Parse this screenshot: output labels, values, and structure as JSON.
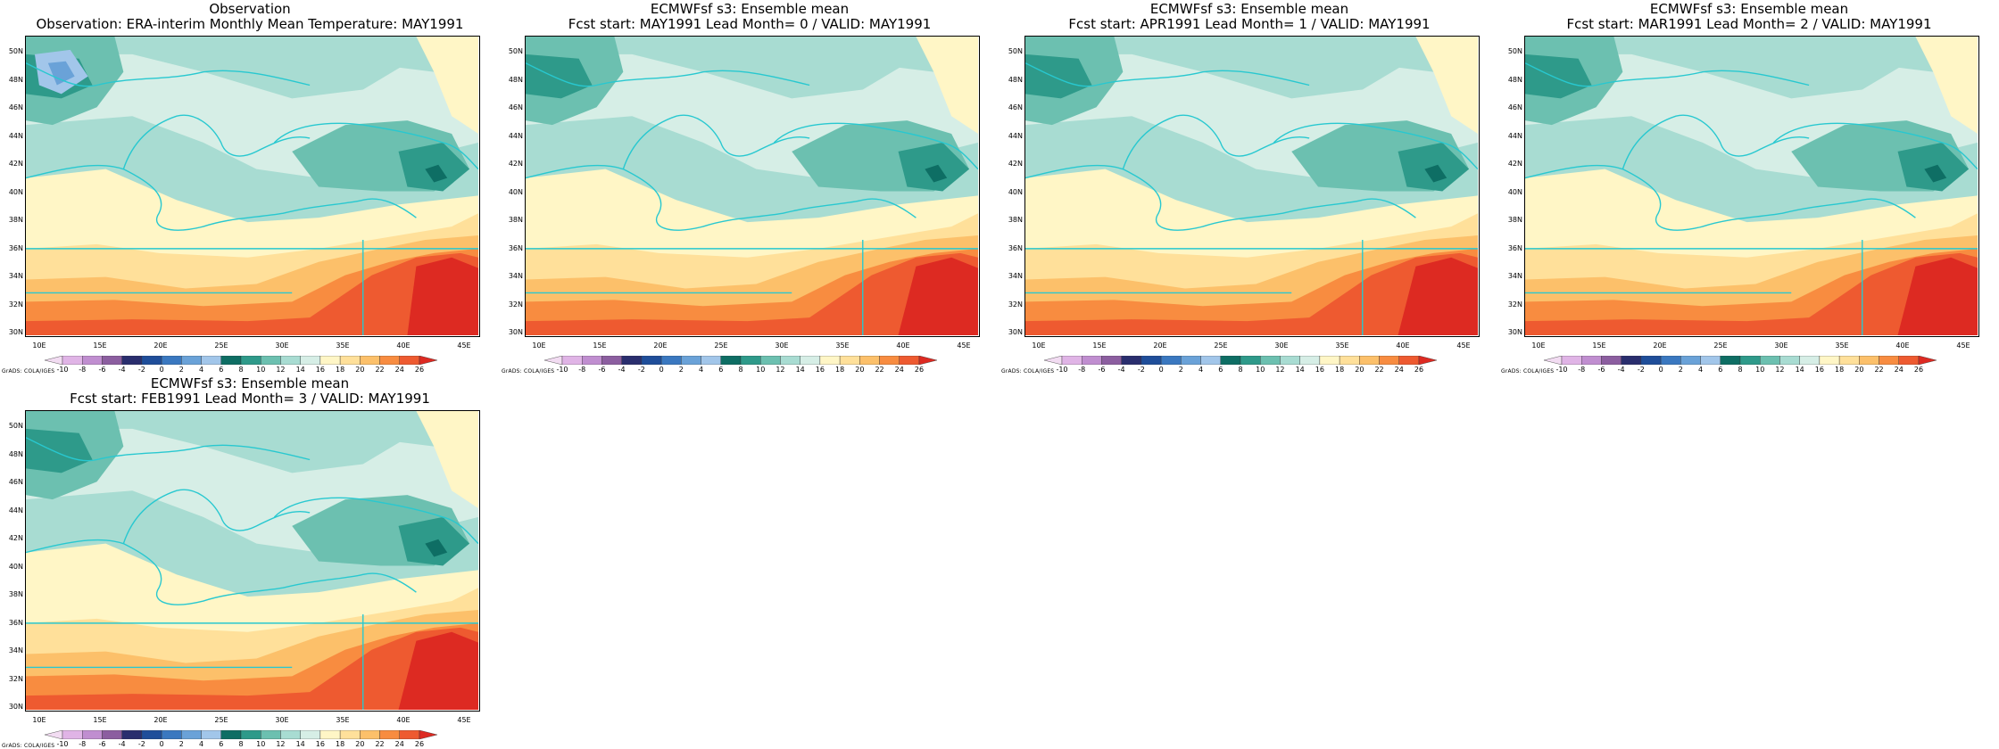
{
  "panels": [
    {
      "title1": "Observation",
      "title2": "Observation: ERA-interim Monthly Mean Temperature: MAY1991",
      "variant": 0
    },
    {
      "title1": "ECMWFsf s3: Ensemble mean",
      "title2": "Fcst start: MAY1991   Lead Month= 0 / VALID: MAY1991",
      "variant": 1
    },
    {
      "title1": "ECMWFsf s3: Ensemble mean",
      "title2": "Fcst start: APR1991   Lead Month= 1 / VALID: MAY1991",
      "variant": 2
    },
    {
      "title1": "ECMWFsf s3: Ensemble mean",
      "title2": "Fcst start: MAR1991   Lead Month= 2 / VALID: MAY1991",
      "variant": 3
    },
    {
      "title1": "ECMWFsf s3: Ensemble mean",
      "title2": "Fcst start: FEB1991   Lead Month= 3 / VALID: MAY1991",
      "variant": 4
    }
  ],
  "lat_labels": [
    "50N",
    "48N",
    "46N",
    "44N",
    "42N",
    "40N",
    "38N",
    "36N",
    "34N",
    "32N",
    "30N"
  ],
  "lon_labels": [
    "10E",
    "15E",
    "20E",
    "25E",
    "30E",
    "35E",
    "40E",
    "45E"
  ],
  "colorbar": {
    "labels": [
      "-10",
      "-8",
      "-6",
      "-4",
      "-2",
      "0",
      "2",
      "4",
      "6",
      "8",
      "10",
      "12",
      "14",
      "16",
      "18",
      "20",
      "22",
      "24",
      "26"
    ],
    "colors": [
      "#f2dcf2",
      "#e0b4e6",
      "#c08ed0",
      "#8c5ea0",
      "#2a2e6e",
      "#1f4e9a",
      "#3a78c0",
      "#6aa2d8",
      "#a2c6ea",
      "#0e6e64",
      "#2e9a8a",
      "#6cc0b0",
      "#a8dcd2",
      "#d6eee6",
      "#fff6c6",
      "#ffe09a",
      "#fcc06a",
      "#f88c40",
      "#ee5a30",
      "#dd2a22"
    ]
  },
  "grads_credit": "GrADS: COLA/IGES",
  "coast_color": "#28c8d0"
}
